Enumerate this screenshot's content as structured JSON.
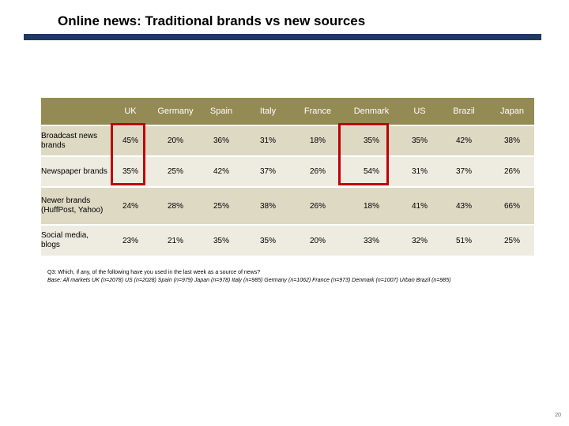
{
  "title": "Online news: Traditional brands vs new sources",
  "chart_data": {
    "type": "table",
    "columns": [
      "UK",
      "Germany",
      "Spain",
      "Italy",
      "France",
      "Denmark",
      "US",
      "Brazil",
      "Japan"
    ],
    "rows": [
      {
        "label": "Broadcast news brands",
        "values": [
          "45%",
          "20%",
          "36%",
          "31%",
          "18%",
          "35%",
          "35%",
          "42%",
          "38%"
        ]
      },
      {
        "label": "Newspaper brands",
        "values": [
          "35%",
          "25%",
          "42%",
          "37%",
          "26%",
          "54%",
          "31%",
          "37%",
          "26%"
        ]
      },
      {
        "label": "Newer brands (HuffPost, Yahoo)",
        "values": [
          "24%",
          "28%",
          "25%",
          "38%",
          "26%",
          "18%",
          "41%",
          "43%",
          "66%"
        ]
      },
      {
        "label": "Social media, blogs",
        "values": [
          "23%",
          "21%",
          "35%",
          "35%",
          "20%",
          "33%",
          "32%",
          "51%",
          "25%"
        ]
      }
    ],
    "highlighted_columns": [
      "UK",
      "Denmark"
    ],
    "highlight_color": "#c00000"
  },
  "footnote": {
    "question": "Q3: Which, if any, of the following have you used in the last week as a source of news?",
    "base": "Base: All markets UK (n=2078) US (n=2028) Spain (n=979) Japan (n=978) Italy (n=985) Germany (n=1062) France (n=973) Denmark (n=1007) Urban Brazil (n=985)"
  },
  "page_number": "20",
  "colors": {
    "header_bg": "#948a54",
    "row_dark": "#ddd9c3",
    "row_light": "#eeece1",
    "title_rule": "#1f3864"
  }
}
